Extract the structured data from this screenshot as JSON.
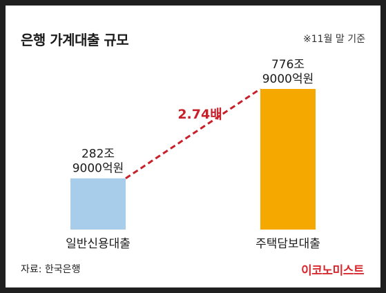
{
  "header": {
    "title": "은행 가계대출 규모",
    "basis_note": "※11월 말 기준"
  },
  "footer": {
    "source": "자료: 한국은행",
    "logo": "이코노미스트"
  },
  "colors": {
    "bar_general": "#a8cdea",
    "bar_mortgage": "#f5a800",
    "ratio_line": "#c8202a",
    "logo": "#d7282f"
  },
  "chart_data": {
    "type": "bar",
    "title": "은행 가계대출 규모",
    "unit_note": "※11월 말 기준",
    "categories": [
      "일반신용대출",
      "주택담보대출"
    ],
    "values": [
      282.9,
      776.9
    ],
    "unit": "조원",
    "value_labels": [
      [
        "282조",
        "9000억원"
      ],
      [
        "776조",
        "9000억원"
      ]
    ],
    "ratio_label": "2.74배",
    "grid": false,
    "legend": "none"
  }
}
